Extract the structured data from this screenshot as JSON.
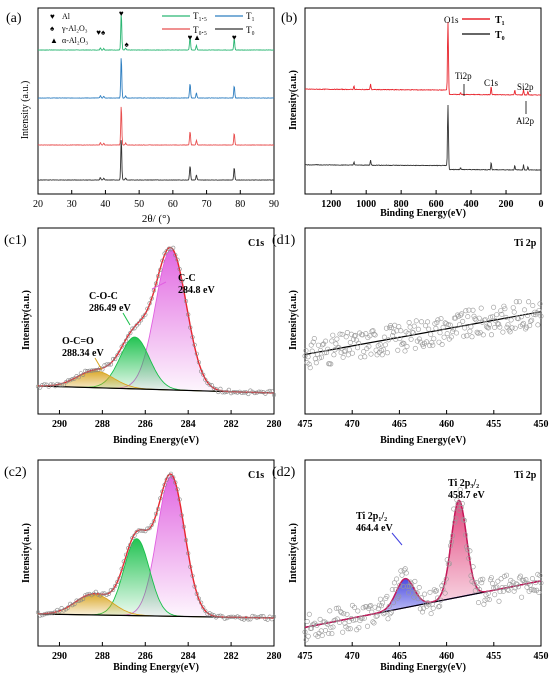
{
  "panels": {
    "a": {
      "label": "(a)",
      "xlabel": "2θ/ (°)",
      "ylabel": "Intensity (a.u.)",
      "xticks": [
        "20",
        "30",
        "40",
        "50",
        "60",
        "70",
        "80",
        "90"
      ],
      "legend_markers": [
        {
          "glyph": "♥",
          "text": "Al",
          "color": "#e8262e"
        },
        {
          "glyph": "♠",
          "text": "γ-Al₂O₃",
          "color": "#111111"
        },
        {
          "glyph": "▲",
          "text": "α-Al₂O₃",
          "color": "#e05fd0"
        }
      ],
      "legend_lines": [
        {
          "text": "T₁.₅",
          "color": "#2bb673"
        },
        {
          "text": "T₁",
          "color": "#2f7fc1"
        },
        {
          "text": "T₀.₅",
          "color": "#e84f4f"
        },
        {
          "text": "T₀",
          "color": "#333333"
        }
      ]
    },
    "b": {
      "label": "(b)",
      "xlabel": "Binding Energy(eV)",
      "ylabel": "Intensity(a.u.)",
      "xticks": [
        "1200",
        "1000",
        "800",
        "600",
        "400",
        "200",
        "0"
      ],
      "legend": [
        {
          "text": "T₁",
          "color": "#e8262e"
        },
        {
          "text": "T₀",
          "color": "#333333"
        }
      ],
      "annotations": [
        "O1s",
        "Ti2p",
        "C1s",
        "Si2p",
        "Al2p"
      ]
    },
    "c1": {
      "label": "(c1)",
      "title": "C1s",
      "xlabel": "Binding Energy(eV)",
      "ylabel": "Intensity(a.u.)",
      "xticks": [
        "290",
        "288",
        "286",
        "284",
        "282",
        "280"
      ],
      "annotations": [
        "C-C",
        "284.8 eV",
        "C-O-C",
        "286.49 eV",
        "O-C=O",
        "288.34 eV"
      ]
    },
    "d1": {
      "label": "(d1)",
      "title": "Ti 2p",
      "xlabel": "Binding Energy(eV)",
      "ylabel": "Intensity(a.u.)",
      "xticks": [
        "475",
        "470",
        "465",
        "460",
        "455",
        "450"
      ]
    },
    "c2": {
      "label": "(c2)",
      "title": "C1s",
      "xlabel": "Binding Energy(eV)",
      "ylabel": "Intensity(a.u.)",
      "xticks": [
        "290",
        "288",
        "286",
        "284",
        "282",
        "280"
      ]
    },
    "d2": {
      "label": "(d2)",
      "title": "Ti 2p",
      "xlabel": "Binding Energy(eV)",
      "ylabel": "Intensity(a.u.)",
      "xticks": [
        "475",
        "470",
        "465",
        "460",
        "455",
        "450"
      ],
      "annotations": [
        "Ti 2p₃/₂",
        "458.7 eV",
        "Ti 2p₁/₂",
        "464.4 eV"
      ]
    }
  },
  "chart_data": [
    {
      "id": "a",
      "type": "line",
      "xlim": [
        20,
        90
      ],
      "series": [
        {
          "name": "T₁.₅",
          "color": "#2bb673"
        },
        {
          "name": "T₁",
          "color": "#2f7fc1"
        },
        {
          "name": "T₀.₅",
          "color": "#e84f4f"
        },
        {
          "name": "T₀",
          "color": "#333333"
        }
      ],
      "peaks": [
        {
          "x": 38.5,
          "h": 0.06
        },
        {
          "x": 39.5,
          "h": 0.04
        },
        {
          "x": 44.7,
          "h": 1.0
        },
        {
          "x": 46.0,
          "h": 0.05
        },
        {
          "x": 65.1,
          "h": 0.35
        },
        {
          "x": 67.0,
          "h": 0.12
        },
        {
          "x": 78.2,
          "h": 0.3
        }
      ],
      "markers": [
        {
          "x": 38.0,
          "glyph": "♥",
          "color": "#e8262e"
        },
        {
          "x": 39.3,
          "glyph": "♠",
          "color": "#111111"
        },
        {
          "x": 44.7,
          "glyph": "♥",
          "color": "#e8262e"
        },
        {
          "x": 46.3,
          "glyph": "♠",
          "color": "#111111"
        },
        {
          "x": 65.1,
          "glyph": "♥",
          "color": "#e8262e"
        },
        {
          "x": 67.2,
          "glyph": "▲",
          "color": "#e05fd0"
        },
        {
          "x": 78.2,
          "glyph": "♥",
          "color": "#e8262e"
        }
      ]
    },
    {
      "id": "b",
      "type": "line",
      "xlim": [
        1350,
        0
      ],
      "series": [
        {
          "name": "T₁",
          "color": "#e8262e"
        },
        {
          "name": "T₀",
          "color": "#333333"
        }
      ],
      "peaks": [
        {
          "x": 1070,
          "h": 0.05
        },
        {
          "x": 975,
          "h": 0.08
        },
        {
          "x": 532,
          "h": 1.0
        },
        {
          "x": 460,
          "h": 0.03
        },
        {
          "x": 285,
          "h": 0.12
        },
        {
          "x": 150,
          "h": 0.07
        },
        {
          "x": 100,
          "h": 0.08
        },
        {
          "x": 75,
          "h": 0.05
        }
      ]
    },
    {
      "id": "c1",
      "type": "area",
      "xlim": [
        291,
        280
      ],
      "components": [
        {
          "center": 284.8,
          "height": 1.0,
          "fwhm": 1.7,
          "color": "#e060e0",
          "label": "C-C"
        },
        {
          "center": 286.49,
          "height": 0.37,
          "fwhm": 1.6,
          "color": "#18c04a",
          "label": "C-O-C"
        },
        {
          "center": 288.34,
          "height": 0.12,
          "fwhm": 2.0,
          "color": "#d9a521",
          "label": "O-C=O"
        }
      ]
    },
    {
      "id": "d1",
      "type": "scatter",
      "xlim": [
        475,
        450
      ],
      "baseline": [
        0.32,
        0.55
      ]
    },
    {
      "id": "c2",
      "type": "area",
      "xlim": [
        291,
        280
      ],
      "components": [
        {
          "center": 284.8,
          "height": 1.0,
          "fwhm": 1.5,
          "color": "#e060e0"
        },
        {
          "center": 286.4,
          "height": 0.55,
          "fwhm": 1.4,
          "color": "#18c04a"
        },
        {
          "center": 288.4,
          "height": 0.15,
          "fwhm": 2.0,
          "color": "#d9a521"
        }
      ]
    },
    {
      "id": "d2",
      "type": "area",
      "xlim": [
        475,
        450
      ],
      "components": [
        {
          "center": 458.7,
          "height": 1.0,
          "fwhm": 1.9,
          "color": "#e0407a",
          "label": "Ti 2p3/2"
        },
        {
          "center": 464.4,
          "height": 0.3,
          "fwhm": 2.2,
          "color": "#4040e0",
          "label": "Ti 2p1/2"
        }
      ],
      "baseline": [
        0.1,
        0.35
      ]
    }
  ]
}
